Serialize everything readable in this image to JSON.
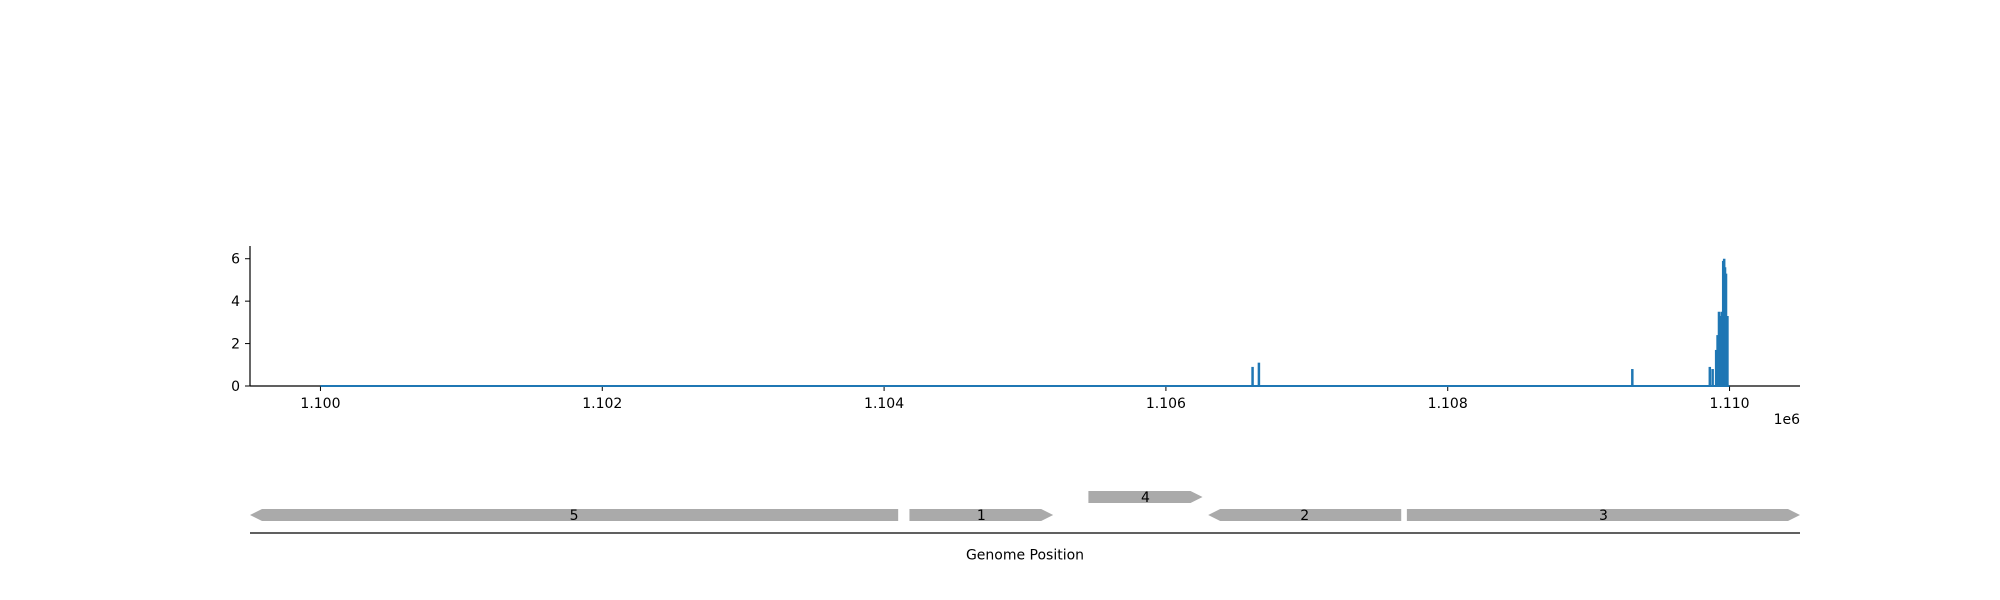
{
  "chart_data": [
    {
      "type": "line",
      "title": "",
      "xlabel": "",
      "ylabel": "",
      "xlim": [
        1099500,
        1110500
      ],
      "ylim": [
        0,
        6.6
      ],
      "x_offset_label": "1e6",
      "x_ticks": [
        {
          "value": 1100000,
          "label": "1.100"
        },
        {
          "value": 1102000,
          "label": "1.102"
        },
        {
          "value": 1104000,
          "label": "1.104"
        },
        {
          "value": 1106000,
          "label": "1.106"
        },
        {
          "value": 1108000,
          "label": "1.108"
        },
        {
          "value": 1110000,
          "label": "1.110"
        }
      ],
      "y_ticks": [
        {
          "value": 0,
          "label": "0"
        },
        {
          "value": 2,
          "label": "2"
        },
        {
          "value": 4,
          "label": "4"
        },
        {
          "value": 6,
          "label": "6"
        }
      ],
      "grid": false,
      "color": "#1f77b4",
      "baseline": [
        1100000,
        1110000
      ],
      "spikes": [
        {
          "x": 1106615,
          "y": 0.9
        },
        {
          "x": 1106660,
          "y": 1.1
        },
        {
          "x": 1109310,
          "y": 0.8
        },
        {
          "x": 1109860,
          "y": 0.9
        },
        {
          "x": 1109880,
          "y": 0.8
        },
        {
          "x": 1109905,
          "y": 1.7
        },
        {
          "x": 1109915,
          "y": 2.4
        },
        {
          "x": 1109925,
          "y": 3.5
        },
        {
          "x": 1109935,
          "y": 3.3
        },
        {
          "x": 1109945,
          "y": 3.5
        },
        {
          "x": 1109955,
          "y": 5.9
        },
        {
          "x": 1109962,
          "y": 6.0
        },
        {
          "x": 1109968,
          "y": 5.6
        },
        {
          "x": 1109975,
          "y": 5.3
        },
        {
          "x": 1109985,
          "y": 3.3
        }
      ]
    },
    {
      "type": "gene_track",
      "xlabel": "Genome Position",
      "xlim": [
        1099500,
        1110500
      ],
      "color": "#aaaaaa",
      "genes": [
        {
          "label": "5",
          "start": 1099500,
          "end": 1104100,
          "strand": "-",
          "row": 0
        },
        {
          "label": "1",
          "start": 1104180,
          "end": 1105200,
          "strand": "+",
          "row": 0
        },
        {
          "label": "4",
          "start": 1105450,
          "end": 1106260,
          "strand": "+",
          "row": 1
        },
        {
          "label": "2",
          "start": 1106300,
          "end": 1107670,
          "strand": "-",
          "row": 0
        },
        {
          "label": "3",
          "start": 1107710,
          "end": 1110500,
          "strand": "+",
          "row": 0
        }
      ]
    }
  ]
}
